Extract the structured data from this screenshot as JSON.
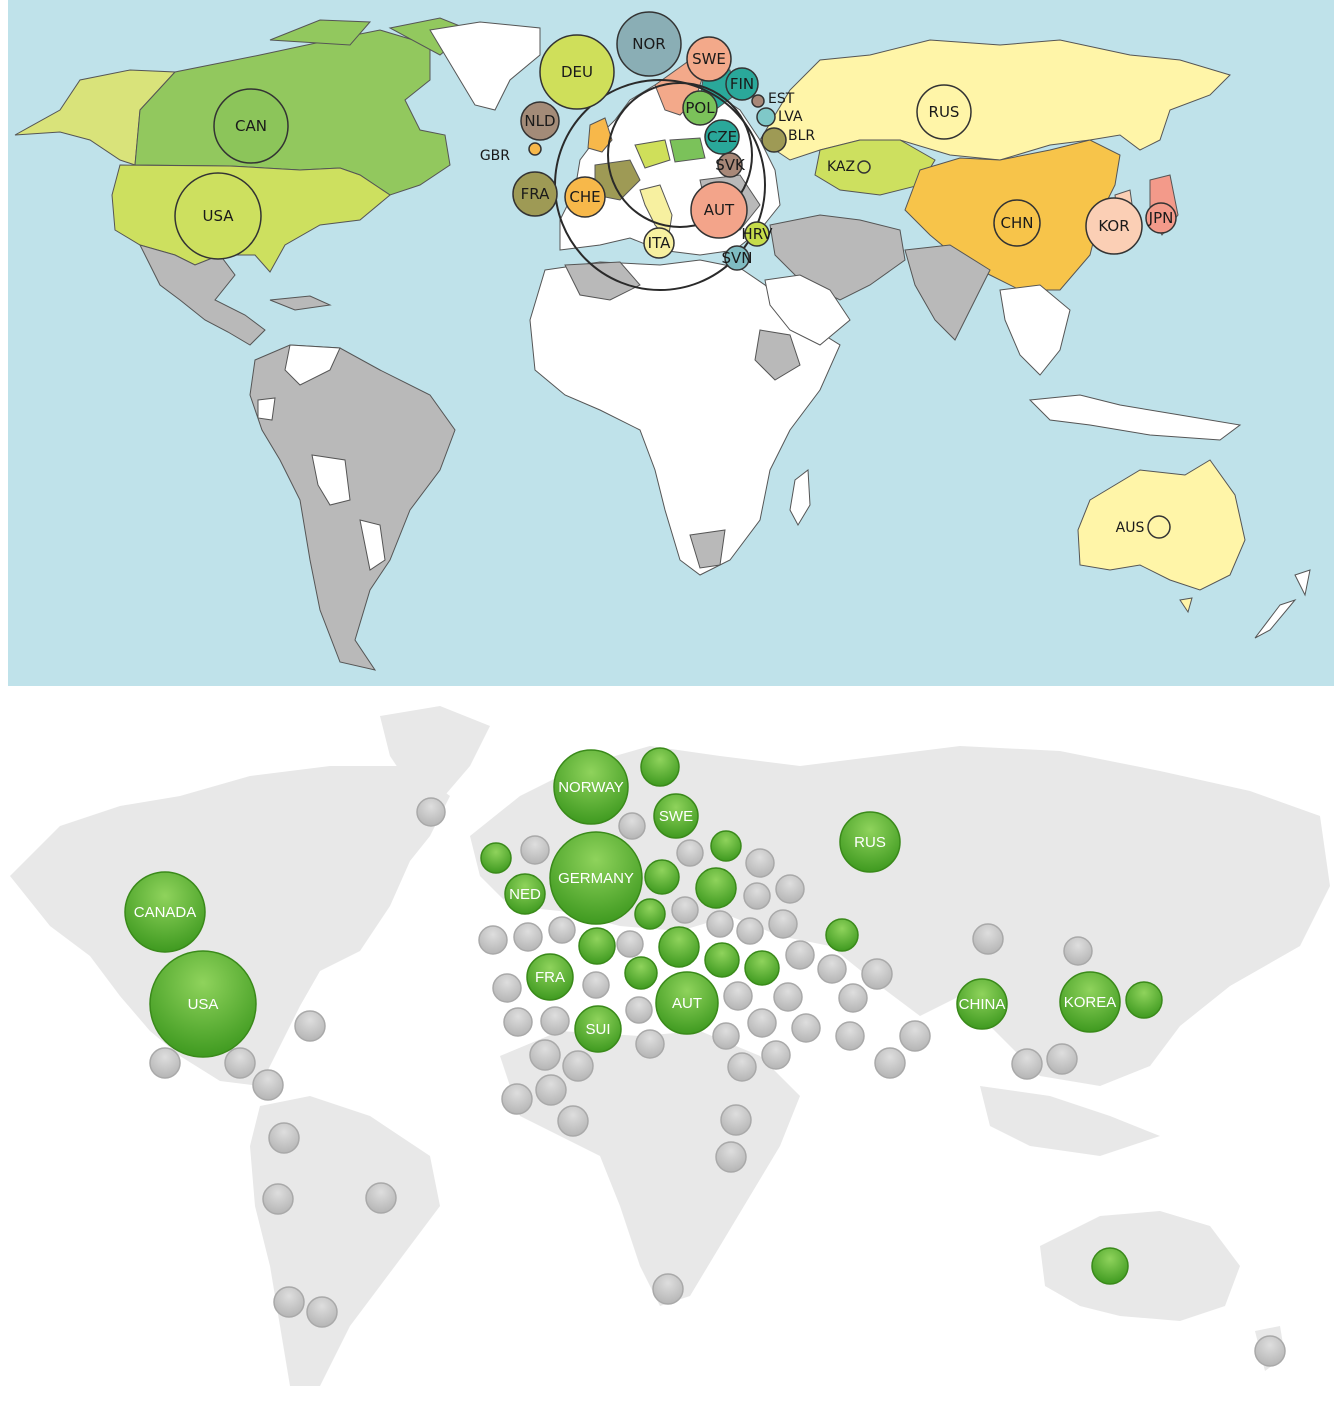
{
  "colors": {
    "ocean": "#bfe2ea",
    "land_gray": "#b9b9b9",
    "land_white": "#ffffff",
    "border": "#555555",
    "bottom_land": "#e8e8e8",
    "green_bubble": "#5cb32f",
    "gray_bubble": "#c6c6c6"
  },
  "top_map": {
    "bubbles": [
      {
        "code": "NOR",
        "color": "#8aaeb5"
      },
      {
        "code": "DEU",
        "color": "#cfdf5a"
      },
      {
        "code": "SWE",
        "color": "#f3a98a"
      },
      {
        "code": "FIN",
        "color": "#2aa89a"
      },
      {
        "code": "POL",
        "color": "#7bc25a"
      },
      {
        "code": "CZE",
        "color": "#2aa89a"
      },
      {
        "code": "NLD",
        "color": "#a38b78"
      },
      {
        "code": "CAN",
        "color": "#8cc55a"
      },
      {
        "code": "USA",
        "color": "#cde05f"
      },
      {
        "code": "FRA",
        "color": "#9e9a55"
      },
      {
        "code": "CHE",
        "color": "#f7b84a"
      },
      {
        "code": "AUT",
        "color": "#f3a48a"
      },
      {
        "code": "ITA",
        "color": "#f7f0a0"
      },
      {
        "code": "HRV",
        "color": "#c6dc4a"
      },
      {
        "code": "SVN",
        "color": "#7fbcc2"
      },
      {
        "code": "SVK",
        "color": "#a88878"
      },
      {
        "code": "RUS",
        "color": "#fff5a8"
      },
      {
        "code": "CHN",
        "color": "#f7c44a"
      },
      {
        "code": "KOR",
        "color": "#fbcfb5"
      },
      {
        "code": "JPN",
        "color": "#f39a8a"
      }
    ],
    "small_markers": [
      {
        "code": "GBR",
        "color": "#f7b84a"
      },
      {
        "code": "EST",
        "color": "#a88878"
      },
      {
        "code": "LVA",
        "color": "#7fc8c8"
      },
      {
        "code": "BLR",
        "color": "#9e9a55"
      },
      {
        "code": "KAZ",
        "color": "#cde05f"
      },
      {
        "code": "AUS",
        "color": "#fff5a8"
      }
    ]
  },
  "bottom_map": {
    "labeled_bubbles": [
      "NORWAY",
      "SWE",
      "GERMANY",
      "NED",
      "CANADA",
      "USA",
      "FRA",
      "AUT",
      "SUI",
      "RUS",
      "CHINA",
      "KOREA"
    ]
  }
}
